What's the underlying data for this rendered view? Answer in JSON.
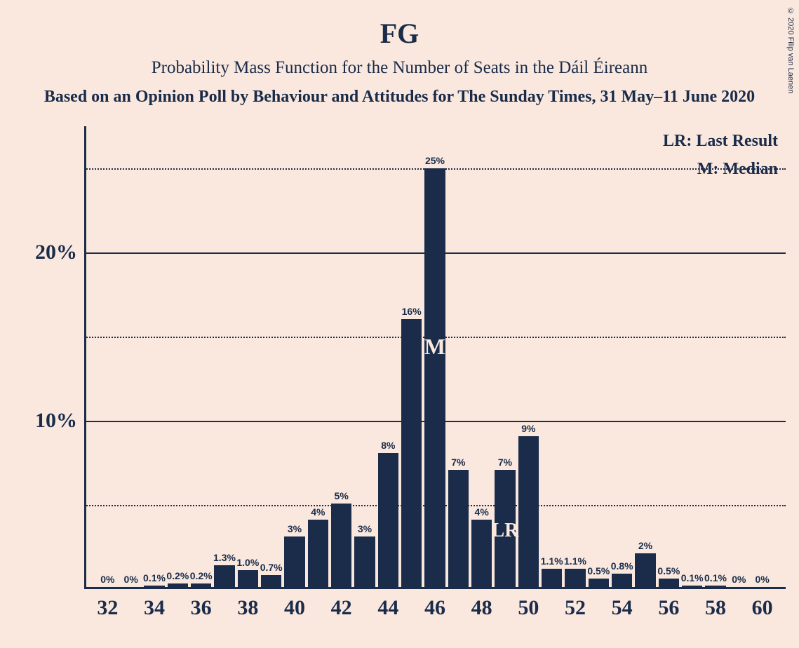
{
  "chart": {
    "type": "bar",
    "title": "FG",
    "subtitle": "Probability Mass Function for the Number of Seats in the Dáil Éireann",
    "source": "Based on an Opinion Poll by Behaviour and Attitudes for The Sunday Times, 31 May–11 June 2020",
    "copyright": "© 2020 Filip van Laenen",
    "legend": {
      "lr": "LR: Last Result",
      "m": "M: Median"
    },
    "title_fontsize": 40,
    "subtitle_fontsize": 25,
    "source_fontsize": 24,
    "legend_fontsize": 24,
    "xtick_fontsize": 30,
    "ytick_fontsize": 30,
    "background_color": "#fae8de",
    "bar_color": "#1a2c4a",
    "text_color": "#1a2c4a",
    "ylim": [
      0,
      27.5
    ],
    "y_ticks_major": [
      10,
      20
    ],
    "y_ticks_minor": [
      5,
      15,
      25
    ],
    "x_range": [
      31,
      61
    ],
    "x_ticks": [
      32,
      34,
      36,
      38,
      40,
      42,
      44,
      46,
      48,
      50,
      52,
      54,
      56,
      58,
      60
    ],
    "bar_width_ratio": 0.88,
    "bars": [
      {
        "x": 32,
        "value": 0,
        "label": "0%"
      },
      {
        "x": 33,
        "value": 0,
        "label": "0%"
      },
      {
        "x": 34,
        "value": 0.1,
        "label": "0.1%"
      },
      {
        "x": 35,
        "value": 0.2,
        "label": "0.2%"
      },
      {
        "x": 36,
        "value": 0.2,
        "label": "0.2%"
      },
      {
        "x": 37,
        "value": 1.3,
        "label": "1.3%"
      },
      {
        "x": 38,
        "value": 1.0,
        "label": "1.0%"
      },
      {
        "x": 39,
        "value": 0.7,
        "label": "0.7%"
      },
      {
        "x": 40,
        "value": 3,
        "label": "3%"
      },
      {
        "x": 41,
        "value": 4,
        "label": "4%"
      },
      {
        "x": 42,
        "value": 5,
        "label": "5%"
      },
      {
        "x": 43,
        "value": 3,
        "label": "3%"
      },
      {
        "x": 44,
        "value": 8,
        "label": "8%"
      },
      {
        "x": 45,
        "value": 16,
        "label": "16%"
      },
      {
        "x": 46,
        "value": 25,
        "label": "25%"
      },
      {
        "x": 47,
        "value": 7,
        "label": "7%"
      },
      {
        "x": 48,
        "value": 4,
        "label": "4%"
      },
      {
        "x": 49,
        "value": 7,
        "label": "7%"
      },
      {
        "x": 50,
        "value": 9,
        "label": "9%"
      },
      {
        "x": 51,
        "value": 1.1,
        "label": "1.1%"
      },
      {
        "x": 52,
        "value": 1.1,
        "label": "1.1%"
      },
      {
        "x": 53,
        "value": 0.5,
        "label": "0.5%"
      },
      {
        "x": 54,
        "value": 0.8,
        "label": "0.8%"
      },
      {
        "x": 55,
        "value": 2,
        "label": "2%"
      },
      {
        "x": 56,
        "value": 0.5,
        "label": "0.5%"
      },
      {
        "x": 57,
        "value": 0.1,
        "label": "0.1%"
      },
      {
        "x": 58,
        "value": 0.1,
        "label": "0.1%"
      },
      {
        "x": 59,
        "value": 0,
        "label": "0%"
      },
      {
        "x": 60,
        "value": 0,
        "label": "0%"
      }
    ],
    "markers": {
      "median": {
        "x": 46,
        "label": "M",
        "fontsize": 32
      },
      "last_result": {
        "x": 49,
        "label": "LR",
        "fontsize": 28
      }
    }
  }
}
